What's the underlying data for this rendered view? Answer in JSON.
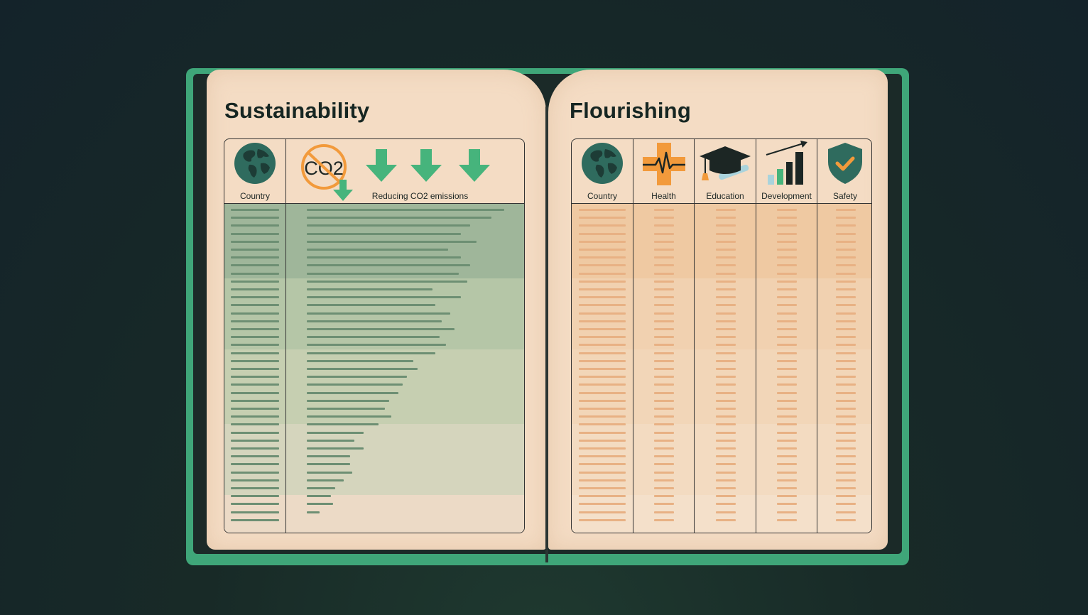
{
  "left_page": {
    "title": "Sustainability",
    "columns": {
      "country_label": "Country",
      "emissions_label": "Reducing CO2 emissions",
      "co2_icon_text": "CO2"
    },
    "bar_lengths": [
      0.91,
      0.85,
      0.75,
      0.71,
      0.78,
      0.65,
      0.71,
      0.75,
      0.7,
      0.74,
      0.58,
      0.71,
      0.59,
      0.66,
      0.62,
      0.68,
      0.61,
      0.64,
      0.59,
      0.49,
      0.51,
      0.46,
      0.44,
      0.42,
      0.38,
      0.36,
      0.39,
      0.33,
      0.26,
      0.22,
      0.26,
      0.2,
      0.2,
      0.21,
      0.17,
      0.13,
      0.11,
      0.12,
      0.06
    ]
  },
  "right_page": {
    "title": "Flourishing",
    "columns": [
      {
        "label": "Country",
        "icon": "globe-icon"
      },
      {
        "label": "Health",
        "icon": "health-cross-icon"
      },
      {
        "label": "Education",
        "icon": "graduation-cap-icon"
      },
      {
        "label": "Development",
        "icon": "growth-chart-icon"
      },
      {
        "label": "Safety",
        "icon": "shield-check-icon"
      }
    ]
  },
  "colors": {
    "cover_green": "#3fa679",
    "arrow_green": "#46b47c",
    "orange": "#f29a3b",
    "ink": "#162622",
    "page": "#f4dcc4"
  }
}
